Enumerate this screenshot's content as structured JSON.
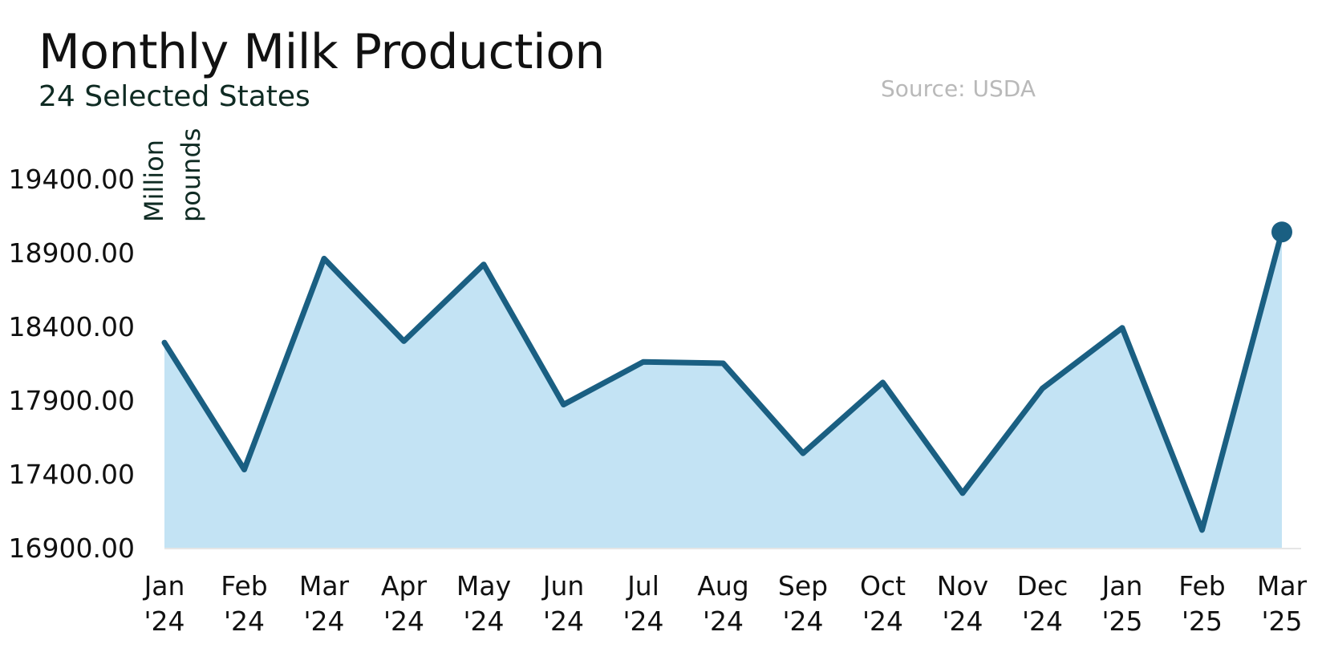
{
  "chart_data": {
    "type": "area",
    "title": "Monthly Milk Production",
    "subtitle": "24 Selected States",
    "source": "Source: USDA",
    "ylabel_lines": [
      "Million",
      "pounds"
    ],
    "xlabel": "",
    "x": [
      [
        "Jan",
        "'24"
      ],
      [
        "Feb",
        "'24"
      ],
      [
        "Mar",
        "'24"
      ],
      [
        "Apr",
        "'24"
      ],
      [
        "May",
        "'24"
      ],
      [
        "Jun",
        "'24"
      ],
      [
        "Jul",
        "'24"
      ],
      [
        "Aug",
        "'24"
      ],
      [
        "Sep",
        "'24"
      ],
      [
        "Oct",
        "'24"
      ],
      [
        "Nov",
        "'24"
      ],
      [
        "Dec",
        "'24"
      ],
      [
        "Jan",
        "'25"
      ],
      [
        "Feb",
        "'25"
      ],
      [
        "Mar",
        "'25"
      ]
    ],
    "values": [
      18290,
      17430,
      18860,
      18300,
      18820,
      17870,
      18160,
      18150,
      17540,
      18020,
      17270,
      17980,
      18390,
      17020,
      19040
    ],
    "ylim": [
      16900,
      19400
    ],
    "yticks": [
      "16900.00",
      "17400.00",
      "17900.00",
      "18400.00",
      "18900.00",
      "19400.00"
    ],
    "ytick_values": [
      16900,
      17400,
      17900,
      18400,
      18900,
      19400
    ],
    "grid": false,
    "colors": {
      "line": "#1a5f82",
      "fill": "#c3e3f4",
      "baseline": "#e6e6e6"
    }
  }
}
